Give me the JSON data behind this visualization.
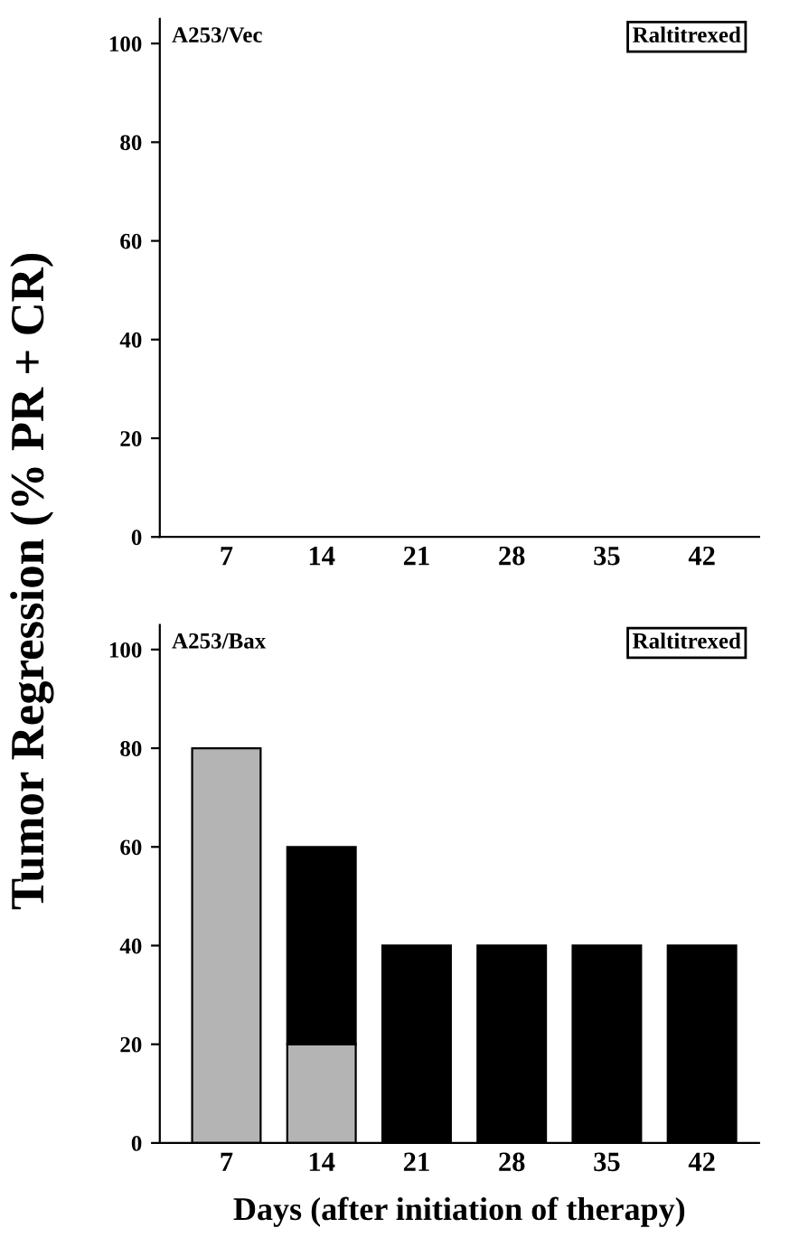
{
  "chart_data": [
    {
      "type": "bar",
      "stacked": true,
      "ylabel": "Tumor Regression (% PR + CR)",
      "annotations": [
        "A253/Vec",
        "Raltitrexed"
      ],
      "categories": [
        "7",
        "14",
        "21",
        "28",
        "35",
        "42"
      ],
      "series": [
        {
          "color": "#b4b4b4",
          "values": [
            0,
            0,
            0,
            0,
            0,
            0
          ]
        },
        {
          "color": "#000000",
          "values": [
            0,
            0,
            0,
            0,
            0,
            0
          ]
        }
      ],
      "ylim": [
        0,
        105
      ],
      "yticks": [
        0,
        20,
        40,
        60,
        80,
        100
      ]
    },
    {
      "type": "bar",
      "stacked": true,
      "xlabel": "Days (after initiation of therapy)",
      "annotations": [
        "A253/Bax",
        "Raltitrexed"
      ],
      "categories": [
        "7",
        "14",
        "21",
        "28",
        "35",
        "42"
      ],
      "series": [
        {
          "color": "#b4b4b4",
          "values": [
            80,
            20,
            0,
            0,
            0,
            0
          ]
        },
        {
          "color": "#000000",
          "values": [
            0,
            40,
            40,
            40,
            40,
            40
          ]
        }
      ],
      "ylim": [
        0,
        105
      ],
      "yticks": [
        0,
        20,
        40,
        60,
        80,
        100
      ]
    }
  ]
}
